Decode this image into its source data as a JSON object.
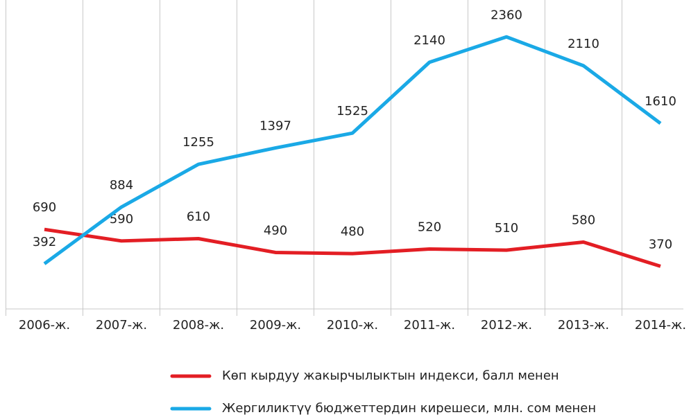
{
  "chart_data": {
    "type": "line",
    "categories": [
      "2006-ж.",
      "2007-ж.",
      "2008-ж.",
      "2009-ж.",
      "2010-ж.",
      "2011-ж.",
      "2012-ж.",
      "2013-ж.",
      "2014-ж."
    ],
    "series": [
      {
        "name": "Көп кырдуу жакырчылыктын индекси, балл менен",
        "color": "#e31e24",
        "values": [
          690,
          590,
          610,
          490,
          480,
          520,
          510,
          580,
          370
        ]
      },
      {
        "name": "Жергиликтүү бюджеттердин кирешеси, млн. сом менен",
        "color": "#1aa9e6",
        "values": [
          392,
          884,
          1255,
          1397,
          1525,
          2140,
          2360,
          2110,
          1610
        ]
      }
    ],
    "ylim": [
      0,
      2680
    ],
    "grid": true,
    "legend": "bottom"
  }
}
